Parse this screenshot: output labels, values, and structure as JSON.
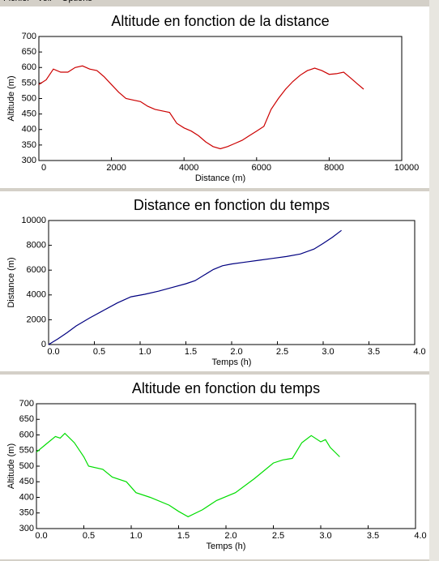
{
  "menu": [
    "Fichier",
    "Voir",
    "Options"
  ],
  "chart_data": [
    {
      "type": "line",
      "title": "Altitude en fonction de la distance",
      "x_label": "Distance (m)",
      "y_label": "Altitude (m)",
      "x": [
        0,
        200,
        400,
        600,
        800,
        1000,
        1200,
        1400,
        1600,
        1800,
        2000,
        2200,
        2400,
        2600,
        2800,
        3000,
        3200,
        3400,
        3600,
        3800,
        4000,
        4200,
        4400,
        4600,
        4800,
        5000,
        5200,
        5400,
        5600,
        5800,
        6000,
        6200,
        6400,
        6600,
        6800,
        7000,
        7200,
        7400,
        7600,
        7800,
        8000,
        8200,
        8400,
        8600,
        8800,
        8950
      ],
      "values": [
        545,
        560,
        595,
        585,
        585,
        600,
        605,
        595,
        590,
        570,
        545,
        520,
        500,
        495,
        490,
        475,
        465,
        460,
        455,
        420,
        405,
        395,
        380,
        360,
        345,
        338,
        345,
        355,
        365,
        380,
        395,
        410,
        465,
        500,
        530,
        555,
        575,
        590,
        598,
        590,
        578,
        580,
        585,
        565,
        545,
        530
      ],
      "color": "#cc0000",
      "xlim": [
        0,
        10000
      ],
      "xticks": [
        0,
        2000,
        4000,
        6000,
        8000,
        10000
      ],
      "ylim": [
        300,
        700
      ],
      "yticks": [
        300,
        350,
        400,
        450,
        500,
        550,
        600,
        650,
        700
      ]
    },
    {
      "type": "line",
      "title": "Distance en fonction du temps",
      "x_label": "Temps (h)",
      "y_label": "Distance (m)",
      "x": [
        0,
        0.1,
        0.2,
        0.3,
        0.45,
        0.6,
        0.75,
        0.9,
        1.05,
        1.2,
        1.35,
        1.5,
        1.6,
        1.7,
        1.8,
        1.9,
        2.0,
        2.15,
        2.3,
        2.45,
        2.6,
        2.75,
        2.9,
        3.0,
        3.1,
        3.2
      ],
      "values": [
        0,
        450,
        950,
        1500,
        2150,
        2750,
        3350,
        3850,
        4050,
        4300,
        4600,
        4900,
        5150,
        5600,
        6050,
        6350,
        6500,
        6650,
        6800,
        6950,
        7100,
        7300,
        7700,
        8150,
        8650,
        9200
      ],
      "color": "#000080",
      "xlim": [
        0,
        4
      ],
      "xticks": [
        {
          "value": 0,
          "label": "0.0"
        },
        0.5,
        {
          "value": 1,
          "label": "1.0"
        },
        1.5,
        {
          "value": 2,
          "label": "2.0"
        },
        2.5,
        {
          "value": 3,
          "label": "3.0"
        },
        3.5,
        {
          "value": 4,
          "label": "4.0"
        }
      ],
      "ylim": [
        0,
        10000
      ],
      "yticks": [
        0,
        2000,
        4000,
        6000,
        8000,
        10000
      ]
    },
    {
      "type": "line",
      "title": "Altitude en fonction du temps",
      "x_label": "Temps (h)",
      "y_label": "Altitude (m)",
      "x": [
        0,
        0.1,
        0.2,
        0.25,
        0.3,
        0.4,
        0.5,
        0.55,
        0.7,
        0.8,
        0.95,
        1.05,
        1.2,
        1.4,
        1.5,
        1.6,
        1.75,
        1.9,
        2.1,
        2.3,
        2.5,
        2.6,
        2.7,
        2.8,
        2.9,
        3.0,
        3.05,
        3.1,
        3.2
      ],
      "values": [
        545,
        570,
        595,
        590,
        605,
        575,
        530,
        500,
        490,
        465,
        450,
        415,
        400,
        375,
        355,
        338,
        360,
        390,
        415,
        460,
        510,
        520,
        525,
        575,
        598,
        578,
        585,
        560,
        530
      ],
      "color": "#00dd00",
      "xlim": [
        0,
        4
      ],
      "xticks": [
        {
          "value": 0,
          "label": "0.0"
        },
        0.5,
        {
          "value": 1,
          "label": "1.0"
        },
        1.5,
        {
          "value": 2,
          "label": "2.0"
        },
        2.5,
        {
          "value": 3,
          "label": "3.0"
        },
        3.5,
        {
          "value": 4,
          "label": "4.0"
        }
      ],
      "ylim": [
        300,
        700
      ],
      "yticks": [
        300,
        350,
        400,
        450,
        500,
        550,
        600,
        650,
        700
      ]
    }
  ]
}
